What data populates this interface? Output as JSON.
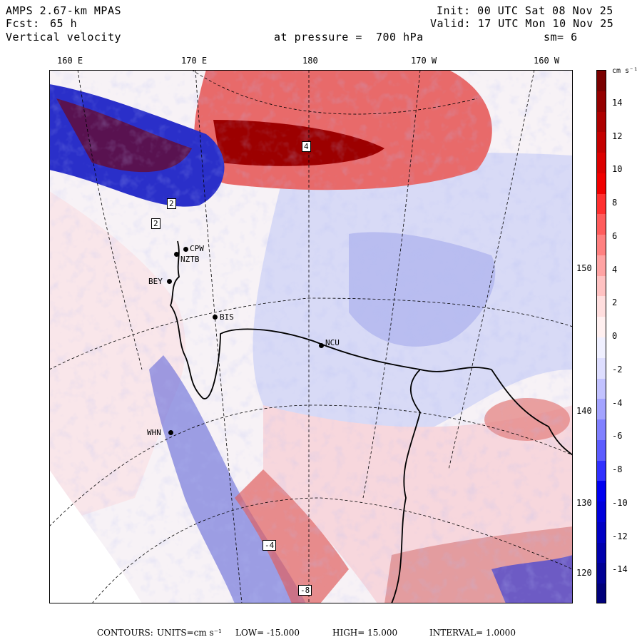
{
  "header": {
    "title": "AMPS 2.67-km MPAS",
    "fcst_label": "Fcst:",
    "fcst_value": "65 h",
    "variable": "Vertical velocity",
    "init": "Init: 00 UTC Sat 08 Nov 25",
    "valid": "Valid: 17 UTC Mon 10 Nov 25",
    "pressure": "at pressure =  700 hPa",
    "smoothing": "sm= 6"
  },
  "lon_ticks": [
    "160 E",
    "170 E",
    "180",
    "170 W",
    "160 W"
  ],
  "lat_ticks": [
    "150 W",
    "140 W",
    "130 W",
    "120 W"
  ],
  "colorbar": {
    "units": "cm s⁻¹",
    "labels": [
      "14",
      "12",
      "10",
      "8",
      "6",
      "4",
      "2",
      "0",
      "-2",
      "-4",
      "-6",
      "-8",
      "-10",
      "-12",
      "-14"
    ],
    "colors": [
      "#7a0000",
      "#940000",
      "#ad0000",
      "#c40000",
      "#db0000",
      "#f00000",
      "#ff3030",
      "#ff5c5c",
      "#ff8080",
      "#ffa3a3",
      "#ffc2c2",
      "#ffdede",
      "#fff0f0",
      "#f0f0ff",
      "#dedeff",
      "#c2c2ff",
      "#a3a3ff",
      "#8080ff",
      "#5c5cff",
      "#3030ff",
      "#0000f0",
      "#0000db",
      "#0000c4",
      "#0000ad",
      "#000094",
      "#00007a"
    ]
  },
  "stations": [
    "CPW",
    "NZTB",
    "BEY",
    "BIS",
    "NCU",
    "WHN"
  ],
  "contour_labels": [
    "4",
    "2",
    "2",
    "-4",
    "-8"
  ],
  "footer": {
    "contours": "CONTOURS:",
    "units": "UNITS=cm s⁻¹",
    "low": "LOW= -15.000",
    "high": "HIGH= 15.000",
    "interval": "INTERVAL= 1.0000"
  }
}
